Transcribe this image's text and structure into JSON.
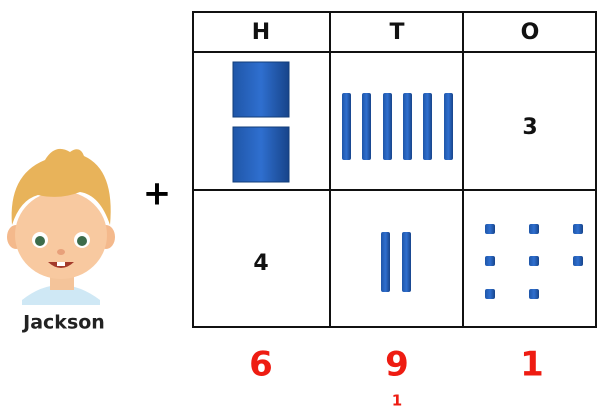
{
  "table": {
    "headers": [
      "H",
      "T",
      "O"
    ],
    "row_1": {
      "ones": "3"
    },
    "row_2": {
      "hundreds": "4"
    }
  },
  "operator": "+",
  "student": {
    "name": "Jackson"
  },
  "answer": {
    "digits": [
      "6",
      "9",
      "1"
    ],
    "carry": "1"
  }
}
